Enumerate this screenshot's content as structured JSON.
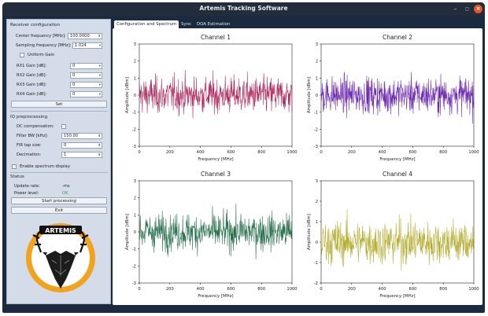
{
  "window": {
    "title": "Artemis Tracking Software",
    "min_icon": "minimize-icon",
    "max_icon": "maximize-icon",
    "close_icon": "close-icon"
  },
  "sidebar": {
    "receiver_header": "Receiver configuration",
    "center_freq_label": "Center frequency [MHz]:",
    "center_freq_value": "100.0000",
    "sampling_freq_label": "Sampling frequency [MHz]:",
    "sampling_freq_value": "1.024",
    "uniform_gain_label": "Uniform Gain",
    "gains": [
      {
        "label": "RX1 Gain [dB]:",
        "value": "0"
      },
      {
        "label": "RX2 Gain [dB]:",
        "value": "0"
      },
      {
        "label": "RX3 Gain [dB]:",
        "value": "0"
      },
      {
        "label": "RX4 Gain [dB]:",
        "value": "0"
      }
    ],
    "set_button": "Set",
    "iq_header": "IQ preprocessing",
    "dc_label": "DC compensation:",
    "filter_bw_label": "Filter BW [kHz]:",
    "filter_bw_value": "150.00",
    "fir_label": "FIR tap size:",
    "fir_value": "0",
    "decimation_label": "Decimation:",
    "decimation_value": "1",
    "spectrum_display_label": "Enable spectrum display",
    "status_header": "Status",
    "update_rate_label": "Update rate:",
    "update_rate_value": "-ms",
    "power_level_label": "Power level:",
    "power_level_value": "OK",
    "power_level_color": "#3aa845",
    "start_button": "Start processing",
    "exit_button": "Exit",
    "logo_text": "ARTEMIS"
  },
  "tabs": [
    {
      "label": "Configuration and Spectrum"
    },
    {
      "label": "Sync"
    },
    {
      "label": "DOA Estimation"
    }
  ],
  "chart_data": [
    {
      "type": "line",
      "title": "Channel 1",
      "xlabel": "Frequency [MHz]",
      "ylabel": "Amplitude [dBm]",
      "xlim": [
        0,
        1000
      ],
      "ylim": [
        -3,
        3
      ],
      "xticks": [
        0,
        200,
        400,
        600,
        800,
        1000
      ],
      "yticks": [
        -3,
        -2,
        -1,
        0,
        1,
        2,
        3
      ],
      "color": "#a3104a",
      "grid": false,
      "n_points": 500,
      "series": [
        {
          "description": "noise around 0 dBm, mostly within ±2"
        }
      ]
    },
    {
      "type": "line",
      "title": "Channel 2",
      "xlabel": "Frequency [MHz]",
      "ylabel": "Amplitude [dBm]",
      "xlim": [
        0,
        1000
      ],
      "ylim": [
        -3,
        3
      ],
      "xticks": [
        0,
        200,
        400,
        600,
        800,
        1000
      ],
      "yticks": [
        -3,
        -2,
        -1,
        0,
        1,
        2,
        3
      ],
      "color": "#5b10a6",
      "grid": false,
      "n_points": 500,
      "series": [
        {
          "description": "noise around 0 dBm, mostly within ±2.5"
        }
      ]
    },
    {
      "type": "line",
      "title": "Channel 3",
      "xlabel": "Frequency [MHz]",
      "ylabel": "Amplitude [dBm]",
      "xlim": [
        0,
        1000
      ],
      "ylim": [
        -3,
        3
      ],
      "xticks": [
        0,
        200,
        400,
        600,
        800,
        1000
      ],
      "yticks": [
        -3,
        -2,
        -1,
        0,
        1,
        2,
        3
      ],
      "color": "#0a5c34",
      "grid": false,
      "n_points": 500,
      "series": [
        {
          "description": "noise around 0 dBm, mostly within ±2"
        }
      ]
    },
    {
      "type": "line",
      "title": "Channel 4",
      "xlabel": "Frequency [MHz]",
      "ylabel": "Amplitude [dBm]",
      "xlim": [
        0,
        1000
      ],
      "ylim": [
        -2,
        3
      ],
      "xticks": [
        0,
        200,
        400,
        600,
        800,
        1000
      ],
      "yticks": [
        -2,
        -1,
        0,
        1,
        2,
        3
      ],
      "color": "#a8a010",
      "grid": false,
      "n_points": 500,
      "series": [
        {
          "description": "noise around 0 dBm, mostly within ±2"
        }
      ]
    }
  ]
}
